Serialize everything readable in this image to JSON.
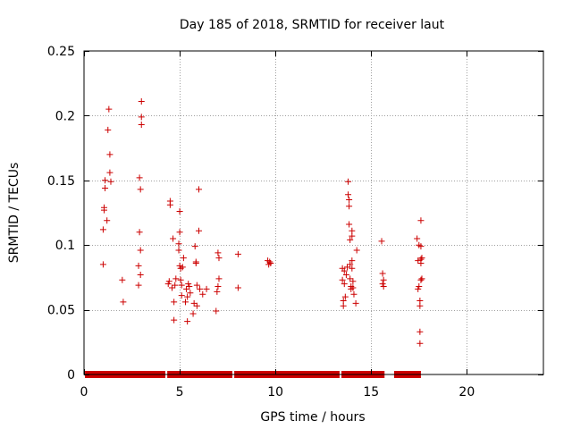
{
  "chart_data": {
    "type": "scatter",
    "title": "Day 185 of 2018, SRMTID for receiver laut",
    "xlabel": "GPS time / hours",
    "ylabel": "SRMTID / TECUs",
    "xlim": [
      0,
      24
    ],
    "ylim": [
      0,
      0.25
    ],
    "xticks": [
      0,
      5,
      10,
      15,
      20
    ],
    "xtick_labels": [
      "0",
      "5",
      "10",
      "15",
      "20"
    ],
    "yticks": [
      0,
      0.05,
      0.1,
      0.15,
      0.2,
      0.25
    ],
    "ytick_labels": [
      "0",
      "0.05",
      "0.1",
      "0.15",
      "0.2",
      "0.25"
    ],
    "grid": true,
    "marker": "+",
    "series": [
      {
        "name": "SRMTID",
        "color": "#cc0000",
        "zero_segments": [
          [
            0.05,
            4.25
          ],
          [
            4.35,
            7.75
          ],
          [
            7.85,
            13.35
          ],
          [
            13.45,
            15.7
          ],
          [
            16.2,
            17.6
          ]
        ],
        "points": [
          [
            1.0,
            0.085
          ],
          [
            1.0,
            0.112
          ],
          [
            1.05,
            0.129
          ],
          [
            1.05,
            0.127
          ],
          [
            1.1,
            0.144
          ],
          [
            1.1,
            0.15
          ],
          [
            1.2,
            0.119
          ],
          [
            1.25,
            0.189
          ],
          [
            1.3,
            0.205
          ],
          [
            1.35,
            0.17
          ],
          [
            1.35,
            0.156
          ],
          [
            1.4,
            0.149
          ],
          [
            2.0,
            0.073
          ],
          [
            2.05,
            0.056
          ],
          [
            2.85,
            0.069
          ],
          [
            2.85,
            0.084
          ],
          [
            2.9,
            0.11
          ],
          [
            2.9,
            0.152
          ],
          [
            2.95,
            0.143
          ],
          [
            2.95,
            0.096
          ],
          [
            2.95,
            0.077
          ],
          [
            3.0,
            0.211
          ],
          [
            3.0,
            0.199
          ],
          [
            3.0,
            0.193
          ],
          [
            4.4,
            0.07
          ],
          [
            4.45,
            0.072
          ],
          [
            4.5,
            0.131
          ],
          [
            4.5,
            0.134
          ],
          [
            4.6,
            0.067
          ],
          [
            4.65,
            0.105
          ],
          [
            4.7,
            0.056
          ],
          [
            4.7,
            0.042
          ],
          [
            4.75,
            0.069
          ],
          [
            4.8,
            0.074
          ],
          [
            4.95,
            0.101
          ],
          [
            4.95,
            0.096
          ],
          [
            5.0,
            0.126
          ],
          [
            5.0,
            0.11
          ],
          [
            5.0,
            0.084
          ],
          [
            5.05,
            0.082
          ],
          [
            5.05,
            0.073
          ],
          [
            5.1,
            0.069
          ],
          [
            5.1,
            0.061
          ],
          [
            5.15,
            0.083
          ],
          [
            5.2,
            0.09
          ],
          [
            5.3,
            0.056
          ],
          [
            5.35,
            0.066
          ],
          [
            5.4,
            0.041
          ],
          [
            5.4,
            0.06
          ],
          [
            5.45,
            0.07
          ],
          [
            5.5,
            0.068
          ],
          [
            5.55,
            0.063
          ],
          [
            5.7,
            0.047
          ],
          [
            5.75,
            0.055
          ],
          [
            5.8,
            0.099
          ],
          [
            5.85,
            0.087
          ],
          [
            5.85,
            0.086
          ],
          [
            5.9,
            0.069
          ],
          [
            5.9,
            0.053
          ],
          [
            6.0,
            0.143
          ],
          [
            6.0,
            0.111
          ],
          [
            6.05,
            0.066
          ],
          [
            6.2,
            0.062
          ],
          [
            6.4,
            0.066
          ],
          [
            6.9,
            0.049
          ],
          [
            6.95,
            0.064
          ],
          [
            7.0,
            0.068
          ],
          [
            7.0,
            0.094
          ],
          [
            7.05,
            0.09
          ],
          [
            7.05,
            0.074
          ],
          [
            8.05,
            0.093
          ],
          [
            8.05,
            0.067
          ],
          [
            9.6,
            0.088
          ],
          [
            9.65,
            0.085
          ],
          [
            9.7,
            0.087
          ],
          [
            9.75,
            0.086
          ],
          [
            13.5,
            0.082
          ],
          [
            13.5,
            0.073
          ],
          [
            13.55,
            0.053
          ],
          [
            13.55,
            0.057
          ],
          [
            13.6,
            0.08
          ],
          [
            13.6,
            0.07
          ],
          [
            13.65,
            0.06
          ],
          [
            13.7,
            0.077
          ],
          [
            13.75,
            0.083
          ],
          [
            13.8,
            0.149
          ],
          [
            13.8,
            0.139
          ],
          [
            13.85,
            0.135
          ],
          [
            13.85,
            0.13
          ],
          [
            13.85,
            0.116
          ],
          [
            13.9,
            0.104
          ],
          [
            13.9,
            0.085
          ],
          [
            13.9,
            0.074
          ],
          [
            13.95,
            0.068
          ],
          [
            13.95,
            0.066
          ],
          [
            14.0,
            0.111
          ],
          [
            14.0,
            0.107
          ],
          [
            14.0,
            0.088
          ],
          [
            14.0,
            0.082
          ],
          [
            14.05,
            0.072
          ],
          [
            14.05,
            0.067
          ],
          [
            14.1,
            0.062
          ],
          [
            14.2,
            0.055
          ],
          [
            14.25,
            0.096
          ],
          [
            15.55,
            0.103
          ],
          [
            15.6,
            0.078
          ],
          [
            15.65,
            0.073
          ],
          [
            15.6,
            0.07
          ],
          [
            15.65,
            0.068
          ],
          [
            17.4,
            0.105
          ],
          [
            17.45,
            0.088
          ],
          [
            17.45,
            0.066
          ],
          [
            17.5,
            0.1
          ],
          [
            17.5,
            0.068
          ],
          [
            17.55,
            0.057
          ],
          [
            17.55,
            0.053
          ],
          [
            17.6,
            0.119
          ],
          [
            17.6,
            0.099
          ],
          [
            17.6,
            0.089
          ],
          [
            17.6,
            0.086
          ],
          [
            17.6,
            0.073
          ],
          [
            17.65,
            0.09
          ],
          [
            17.65,
            0.074
          ],
          [
            17.55,
            0.033
          ],
          [
            17.55,
            0.024
          ]
        ]
      }
    ]
  }
}
